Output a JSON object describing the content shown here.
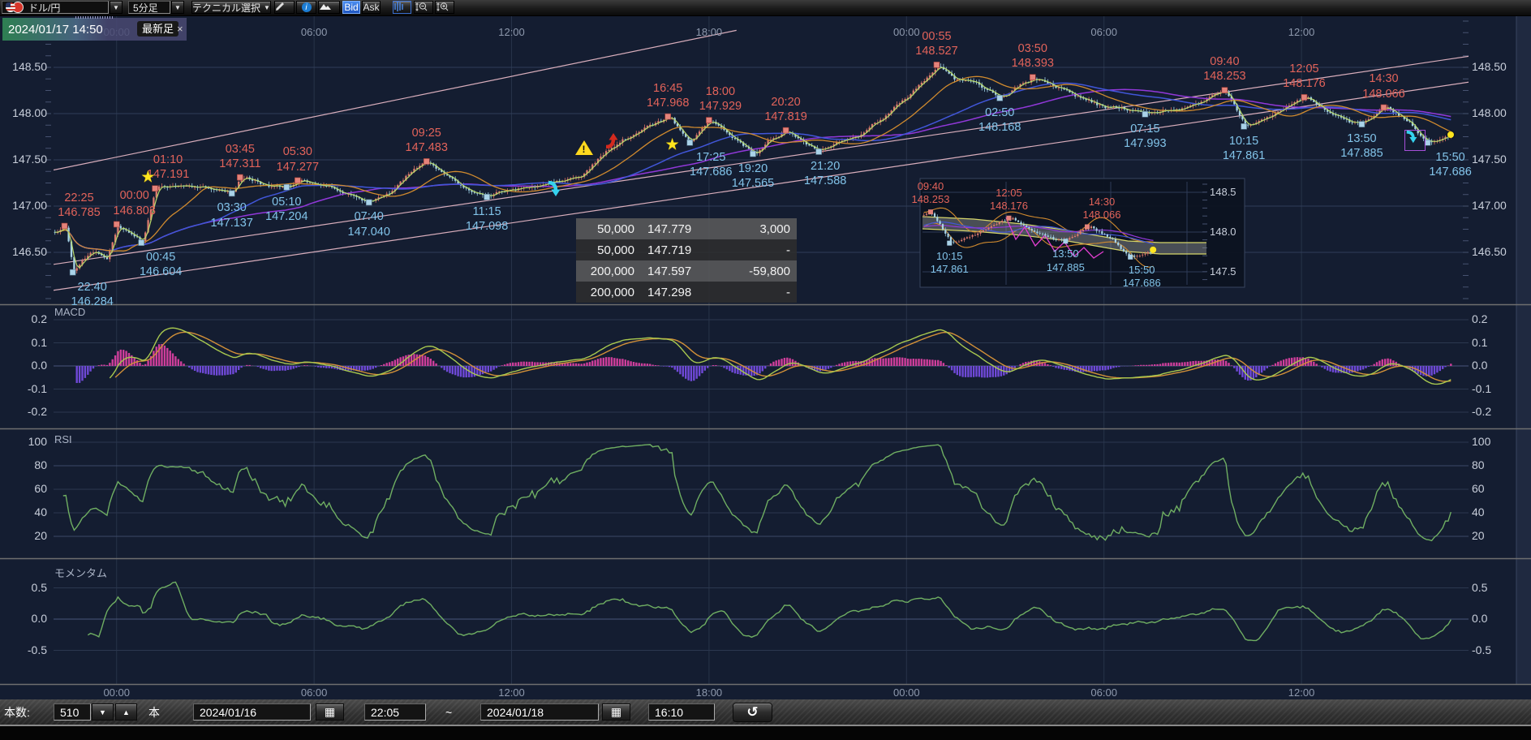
{
  "toolbar": {
    "pair": "ドル/円",
    "timeframe": "5分足",
    "technical": "テクニカル選択",
    "bid": "Bid",
    "ask": "Ask"
  },
  "tag": {
    "datetime": "2024/01/17 14:50",
    "badge": "最新足",
    "close": "×"
  },
  "icons": {
    "dropdown": "▼",
    "spinner_down": "▼",
    "spinner_up": "▲",
    "undo": "↺",
    "calendar": "▦",
    "info": "i",
    "star": "★",
    "warning_mark": "!"
  },
  "table": {
    "rows": [
      [
        "50,000",
        "147.779",
        "3,000"
      ],
      [
        "50,000",
        "147.719",
        "-"
      ],
      [
        "200,000",
        "147.597",
        "-59,800"
      ],
      [
        "200,000",
        "147.298",
        "-"
      ]
    ]
  },
  "bottom": {
    "count_label": "本数:",
    "count": "510",
    "unit": "本",
    "date_from": "2024/01/16",
    "time_from": "22:05",
    "tilde": "~",
    "date_to": "2024/01/18",
    "time_to": "16:10"
  },
  "colors": {
    "candle_up": "#db7b6e",
    "candle_up_wick": "#c4685e",
    "candle_down": "#a8d3e6",
    "candle_down_wick": "#90bfd4",
    "ma_green": "#b8d96a",
    "ma_orange": "#d08a2e",
    "ma_blue": "#4156d8",
    "ma_purple": "#9138d9",
    "trend_rose": "#d9aebc",
    "macd_pos": "#cf3e9b",
    "macd_neg": "#6f49d8",
    "macd_line": "#a9c94f",
    "macd_signal": "#d29038",
    "oscillator_green": "#6fae62",
    "swing_high": "#e2635a",
    "swing_low": "#82c4ea",
    "magenta": "#e23ed0",
    "cloud_edge": "#d6d66a"
  },
  "chart_data": {
    "main": {
      "type": "candlestick",
      "pair": "ドル/円",
      "interval_minutes": 5,
      "bars": 510,
      "time_range": "2024/01/16 22:05 - 2024/01/18 16:10",
      "y_ticks": [
        148.5,
        148.0,
        147.5,
        147.0,
        146.5
      ],
      "y_range": [
        145.94,
        149.06
      ],
      "x_ticks": [
        {
          "label": "00:00",
          "min": 115
        },
        {
          "label": "06:00",
          "min": 475
        },
        {
          "label": "12:00",
          "min": 835
        },
        {
          "label": "18:00",
          "min": 1195
        },
        {
          "label": "00:00",
          "min": 1555
        },
        {
          "label": "06:00",
          "min": 1915
        },
        {
          "label": "12:00",
          "min": 2275
        }
      ],
      "annotations": [
        {
          "time": "22:25",
          "price": 146.785,
          "min": 20,
          "type": "high",
          "dx": 18
        },
        {
          "time": "22:40",
          "price": 146.284,
          "min": 35,
          "type": "low",
          "dx": 24
        },
        {
          "time": "00:00",
          "price": 146.803,
          "min": 115,
          "type": "high",
          "dx": 22
        },
        {
          "time": "00:45",
          "price": 146.604,
          "min": 160,
          "type": "low",
          "dx": 24
        },
        {
          "time": "01:10",
          "price": 147.191,
          "min": 185,
          "type": "high",
          "dx": 16
        },
        {
          "time": "03:30",
          "price": 147.137,
          "min": 325,
          "type": "low"
        },
        {
          "time": "03:45",
          "price": 147.311,
          "min": 340,
          "type": "high"
        },
        {
          "time": "05:10",
          "price": 147.204,
          "min": 425,
          "type": "low"
        },
        {
          "time": "05:30",
          "price": 147.277,
          "min": 445,
          "type": "high"
        },
        {
          "time": "07:40",
          "price": 147.04,
          "min": 575,
          "type": "low"
        },
        {
          "time": "09:25",
          "price": 147.483,
          "min": 680,
          "type": "high"
        },
        {
          "time": "11:15",
          "price": 147.098,
          "min": 790,
          "type": "low"
        },
        {
          "time": "16:45",
          "price": 147.968,
          "min": 1120,
          "type": "high"
        },
        {
          "time": "17:25",
          "price": 147.686,
          "min": 1160,
          "type": "low",
          "dx": 26
        },
        {
          "time": "18:00",
          "price": 147.929,
          "min": 1195,
          "type": "high",
          "dx": 14
        },
        {
          "time": "19:20",
          "price": 147.565,
          "min": 1275,
          "type": "low"
        },
        {
          "time": "20:20",
          "price": 147.819,
          "min": 1335,
          "type": "high"
        },
        {
          "time": "21:20",
          "price": 147.588,
          "min": 1395,
          "type": "low",
          "dx": 8
        },
        {
          "time": "00:55",
          "price": 148.527,
          "min": 1610,
          "type": "high"
        },
        {
          "time": "02:50",
          "price": 148.168,
          "min": 1725,
          "type": "low"
        },
        {
          "time": "03:50",
          "price": 148.393,
          "min": 1785,
          "type": "high"
        },
        {
          "time": "07:15",
          "price": 147.993,
          "min": 1990,
          "type": "low"
        },
        {
          "time": "09:40",
          "price": 148.253,
          "min": 2135,
          "type": "high"
        },
        {
          "time": "10:15",
          "price": 147.861,
          "min": 2170,
          "type": "low"
        },
        {
          "time": "12:05",
          "price": 148.176,
          "min": 2280,
          "type": "high"
        },
        {
          "time": "13:50",
          "price": 147.885,
          "min": 2385,
          "type": "low"
        },
        {
          "time": "14:30",
          "price": 148.066,
          "min": 2425,
          "type": "high"
        },
        {
          "time": "15:50",
          "price": 147.686,
          "min": 2505,
          "type": "low",
          "dx": 28
        }
      ],
      "path_points": [
        [
          0,
          146.7
        ],
        [
          70,
          146.52
        ],
        [
          95,
          146.42
        ],
        [
          140,
          146.7
        ],
        [
          250,
          147.23
        ],
        [
          295,
          147.18
        ],
        [
          380,
          147.24
        ],
        [
          410,
          147.22
        ],
        [
          500,
          147.2
        ],
        [
          540,
          147.12
        ],
        [
          620,
          147.18
        ],
        [
          655,
          147.4
        ],
        [
          730,
          147.28
        ],
        [
          760,
          147.15
        ],
        [
          830,
          147.18
        ],
        [
          900,
          147.24
        ],
        [
          958,
          147.31
        ],
        [
          1010,
          147.63
        ],
        [
          1060,
          147.78
        ],
        [
          1140,
          147.83
        ],
        [
          1180,
          147.86
        ],
        [
          1240,
          147.72
        ],
        [
          1300,
          147.7
        ],
        [
          1360,
          147.7
        ],
        [
          1430,
          147.7
        ],
        [
          1470,
          147.78
        ],
        [
          1520,
          148.0
        ],
        [
          1560,
          148.2
        ],
        [
          1640,
          148.38
        ],
        [
          1680,
          148.32
        ],
        [
          1755,
          148.3
        ],
        [
          1820,
          148.3
        ],
        [
          1850,
          148.22
        ],
        [
          1905,
          148.1
        ],
        [
          1950,
          148.05
        ],
        [
          2060,
          148.07
        ],
        [
          2100,
          148.15
        ],
        [
          2205,
          147.95
        ],
        [
          2240,
          148.05
        ],
        [
          2330,
          147.99
        ],
        [
          2405,
          147.99
        ],
        [
          2460,
          147.95
        ],
        [
          2530,
          147.74
        ],
        [
          2550,
          147.78
        ]
      ],
      "trend_lines": [
        {
          "from": {
            "min": 0,
            "price": 147.39
          },
          "to": {
            "min": 1245,
            "price": 148.9
          }
        },
        {
          "from": {
            "min": 0,
            "price": 146.37
          },
          "to": {
            "min": 2580,
            "price": 148.62
          }
        },
        {
          "from": {
            "min": 0,
            "price": 146.09
          },
          "to": {
            "min": 2580,
            "price": 148.34
          }
        }
      ],
      "icon_markers": [
        {
          "name": "star-icon",
          "min": 172,
          "price": 147.32
        },
        {
          "name": "arrow-down-cyan-icon",
          "min": 898,
          "price": 147.27
        },
        {
          "name": "warning-icon",
          "min": 968,
          "price": 147.63
        },
        {
          "name": "arrow-up-red-icon",
          "min": 1003,
          "price": 147.8
        },
        {
          "name": "star-icon",
          "min": 1128,
          "price": 147.67
        },
        {
          "name": "arrow-down-cyan-boxed-icon",
          "min": 2482,
          "price": 147.71
        },
        {
          "name": "dot-yellow-icon",
          "min": 2547,
          "price": 147.77
        }
      ]
    },
    "inset": {
      "type": "candlestick",
      "y_ticks": [
        148.5,
        148.0,
        147.5
      ],
      "time_start_min": 2120,
      "annotations": [
        {
          "time": "09:40",
          "price": 148.253,
          "min": 2135,
          "type": "high"
        },
        {
          "time": "10:15",
          "price": 147.861,
          "min": 2170,
          "type": "low"
        },
        {
          "time": "12:05",
          "price": 148.176,
          "min": 2280,
          "type": "high"
        },
        {
          "time": "13:50",
          "price": 147.885,
          "min": 2385,
          "type": "low"
        },
        {
          "time": "14:30",
          "price": 148.066,
          "min": 2425,
          "type": "high",
          "dx": 18
        },
        {
          "time": "15:50",
          "price": 147.686,
          "min": 2505,
          "type": "low",
          "dx": 14
        }
      ]
    },
    "macd": {
      "type": "line",
      "title": "MACD",
      "y_ticks": [
        0.2,
        0.1,
        0.0,
        -0.1,
        -0.2
      ],
      "derived_from": "main closes, EMA12-EMA26, signal EMA9"
    },
    "rsi": {
      "type": "line",
      "title": "RSI",
      "y_ticks": [
        100,
        80,
        60,
        40,
        20
      ],
      "derived_from": "main closes, period 14"
    },
    "momentum": {
      "type": "line",
      "title": "モメンタム",
      "y_ticks": [
        0.5,
        0.0,
        -0.5
      ],
      "derived_from": "main closes, period 12"
    }
  }
}
